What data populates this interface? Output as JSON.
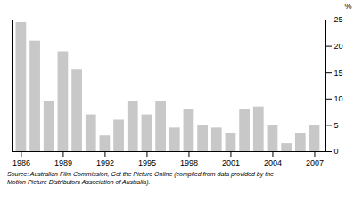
{
  "chart_data": {
    "type": "bar",
    "x": [
      1986,
      1987,
      1988,
      1989,
      1990,
      1991,
      1992,
      1993,
      1994,
      1995,
      1996,
      1997,
      1998,
      1999,
      2000,
      2001,
      2002,
      2003,
      2004,
      2005,
      2006,
      2007
    ],
    "values": [
      24.5,
      21.0,
      9.5,
      19.0,
      15.5,
      7.0,
      3.0,
      6.0,
      9.5,
      7.0,
      9.5,
      4.5,
      8.0,
      5.0,
      4.5,
      3.5,
      8.0,
      8.5,
      5.0,
      1.5,
      3.5,
      5.0
    ],
    "color": "#c8c8c8",
    "xlim": [
      1985.4,
      2007.8
    ],
    "xticks": [
      1986,
      1989,
      1992,
      1995,
      1998,
      2001,
      2004,
      2007
    ],
    "ylim": [
      0,
      25
    ],
    "yticks": [
      0,
      5,
      10,
      15,
      20,
      25
    ],
    "ylabel": "%",
    "caption": "Source: Australian Film Commission, Get the Picture Online (compiled from data provided by the\nMotion Picture Distributors Association of Australia).",
    "grid": false
  }
}
